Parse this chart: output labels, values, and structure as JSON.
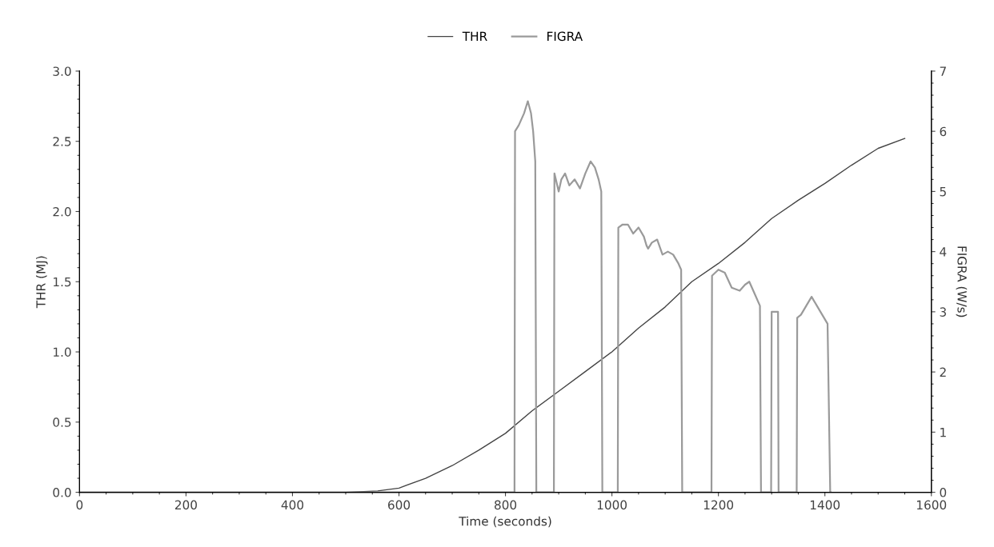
{
  "chart_data": {
    "type": "line",
    "xlabel": "Time (seconds)",
    "ylabel": "THR (MJ)",
    "y2label": "FIGRA (W/s)",
    "legend": "top",
    "xlim": [
      0,
      1600
    ],
    "xticks": [
      0,
      200,
      400,
      600,
      800,
      1000,
      1200,
      1400,
      1600
    ],
    "ylim": [
      0,
      3
    ],
    "yticks": [
      {
        "value": 0,
        "label": "0.0"
      },
      {
        "value": 0.5,
        "label": "0.5"
      },
      {
        "value": 1,
        "label": "1.0"
      },
      {
        "value": 1.5,
        "label": "1.5"
      },
      {
        "value": 2,
        "label": "2.0"
      },
      {
        "value": 2.5,
        "label": "2.5"
      },
      {
        "value": 3,
        "label": "3.0"
      }
    ],
    "y2lim": [
      0,
      7
    ],
    "y2ticks": [
      0,
      1,
      2,
      3,
      4,
      5,
      6,
      7
    ],
    "grid": false,
    "marker": "none",
    "line_style": "solid",
    "series": [
      {
        "name": "THR",
        "color": "#444444",
        "x": [
          0,
          100,
          200,
          300,
          400,
          500,
          560,
          600,
          650,
          700,
          750,
          800,
          850,
          900,
          950,
          1000,
          1050,
          1100,
          1150,
          1200,
          1250,
          1300,
          1350,
          1400,
          1450,
          1500,
          1550
        ],
        "values": [
          0,
          0,
          0,
          0,
          0,
          0,
          0.01,
          0.03,
          0.1,
          0.19,
          0.3,
          0.42,
          0.58,
          0.72,
          0.86,
          1.0,
          1.17,
          1.32,
          1.5,
          1.63,
          1.78,
          1.95,
          2.08,
          2.2,
          2.33,
          2.45,
          2.52
        ]
      },
      {
        "name": "FIGRA",
        "color": "#9a9a9a",
        "axis": "y2",
        "x": [
          0,
          817,
          818,
          825,
          835,
          842,
          848,
          852,
          856,
          858,
          891,
          892,
          900,
          905,
          912,
          920,
          930,
          940,
          950,
          960,
          968,
          975,
          980,
          982,
          1011,
          1012,
          1020,
          1030,
          1040,
          1050,
          1060,
          1065,
          1068,
          1075,
          1085,
          1095,
          1105,
          1115,
          1125,
          1130,
          1132,
          1187,
          1188,
          1200,
          1212,
          1225,
          1240,
          1250,
          1258,
          1268,
          1278,
          1280,
          1299,
          1300,
          1312,
          1313,
          1347,
          1348,
          1355,
          1365,
          1375,
          1385,
          1395,
          1405,
          1410,
          1411
        ],
        "values": [
          0,
          0,
          6.0,
          6.1,
          6.3,
          6.5,
          6.3,
          6.0,
          5.5,
          0,
          0,
          5.3,
          5.0,
          5.2,
          5.3,
          5.1,
          5.2,
          5.05,
          5.3,
          5.5,
          5.4,
          5.2,
          5.0,
          0,
          0,
          4.4,
          4.45,
          4.45,
          4.3,
          4.4,
          4.25,
          4.1,
          4.05,
          4.15,
          4.2,
          3.95,
          4.0,
          3.95,
          3.8,
          3.7,
          0,
          0,
          3.6,
          3.7,
          3.65,
          3.4,
          3.35,
          3.45,
          3.5,
          3.3,
          3.1,
          0,
          0,
          3.0,
          3.0,
          0,
          0,
          2.9,
          2.95,
          3.1,
          3.25,
          3.1,
          2.95,
          2.8,
          0,
          0
        ]
      }
    ]
  }
}
